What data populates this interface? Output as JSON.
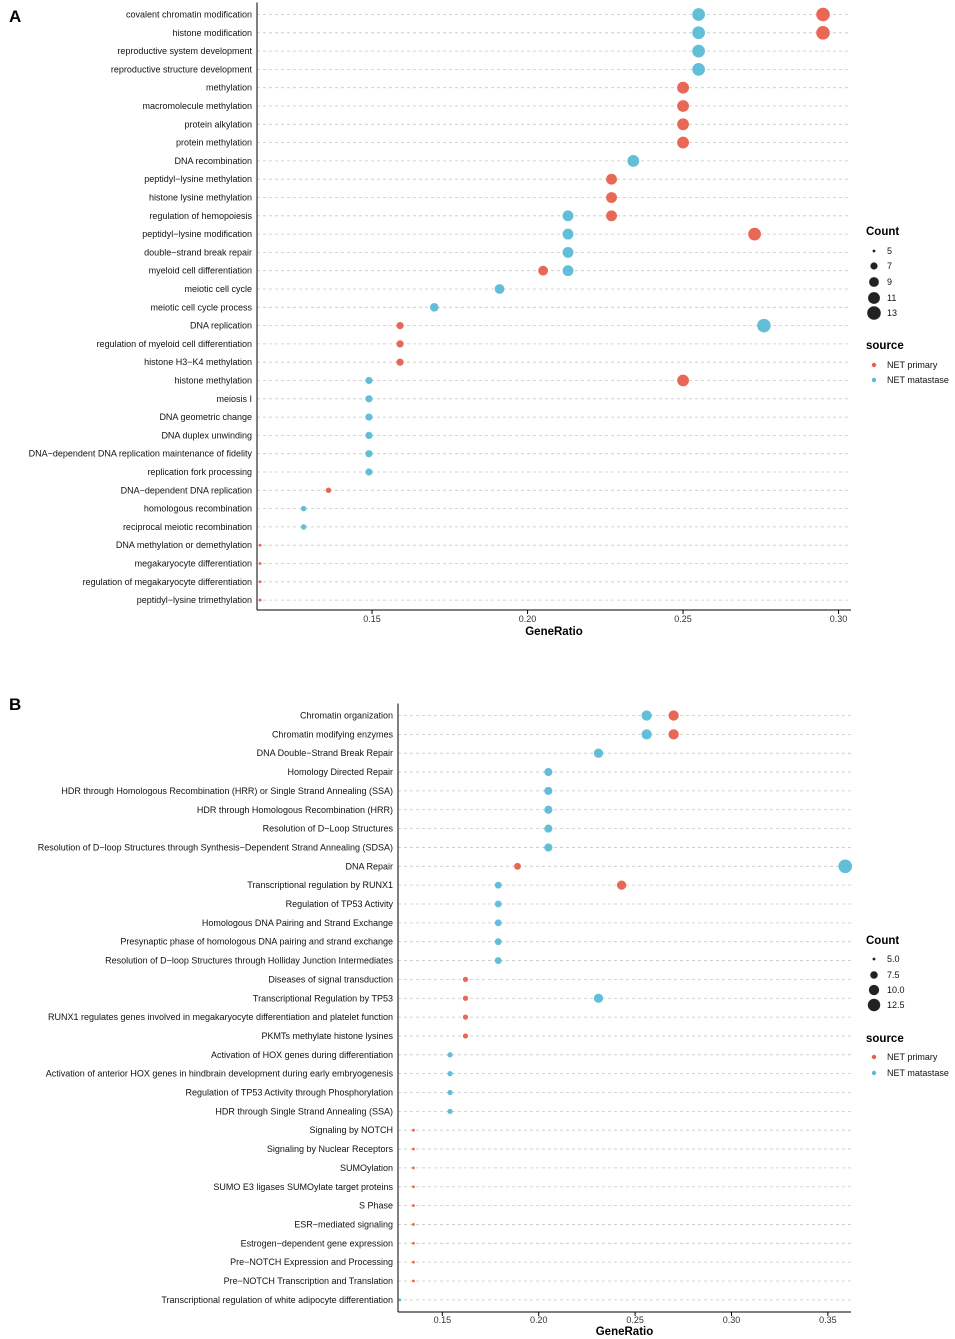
{
  "colors": {
    "NET primary": "#e8604c",
    "NET matastase": "#5bbcd6"
  },
  "chart_data": [
    {
      "panel": "A",
      "type": "scatter",
      "xlabel": "GeneRatio",
      "xlim": [
        0.113,
        0.304
      ],
      "xticks": [
        "0.15",
        "0.20",
        "0.25",
        "0.30"
      ],
      "size_legend": {
        "title": "Count",
        "breaks": [
          "5",
          "7",
          "9",
          "11",
          "13"
        ]
      },
      "color_legend": {
        "title": "source",
        "entries": [
          "NET primary",
          "NET matastase"
        ]
      },
      "terms": [
        "covalent chromatin modification",
        "histone modification",
        "reproductive system development",
        "reproductive structure development",
        "methylation",
        "macromolecule methylation",
        "protein alkylation",
        "protein methylation",
        "DNA recombination",
        "peptidyl−lysine methylation",
        "histone lysine methylation",
        "regulation of hemopoiesis",
        "peptidyl−lysine modification",
        "double−strand break repair",
        "myeloid cell differentiation",
        "meiotic cell cycle",
        "meiotic cell cycle process",
        "DNA replication",
        "regulation of myeloid cell differentiation",
        "histone H3−K4 methylation",
        "histone methylation",
        "meiosis I",
        "DNA geometric change",
        "DNA duplex unwinding",
        "DNA−dependent DNA replication maintenance of fidelity",
        "replication fork processing",
        "DNA−dependent DNA replication",
        "homologous recombination",
        "reciprocal meiotic recombination",
        "DNA methylation or demethylation",
        "megakaryocyte differentiation",
        "regulation of megakaryocyte differentiation",
        "peptidyl−lysine trimethylation"
      ],
      "points": [
        {
          "term": "covalent chromatin modification",
          "x": 0.295,
          "count": 13,
          "source": "NET primary"
        },
        {
          "term": "covalent chromatin modification",
          "x": 0.255,
          "count": 12,
          "source": "NET matastase"
        },
        {
          "term": "histone modification",
          "x": 0.295,
          "count": 13,
          "source": "NET primary"
        },
        {
          "term": "histone modification",
          "x": 0.255,
          "count": 12,
          "source": "NET matastase"
        },
        {
          "term": "reproductive system development",
          "x": 0.255,
          "count": 12,
          "source": "NET matastase"
        },
        {
          "term": "reproductive structure development",
          "x": 0.255,
          "count": 12,
          "source": "NET matastase"
        },
        {
          "term": "methylation",
          "x": 0.25,
          "count": 11,
          "source": "NET primary"
        },
        {
          "term": "macromolecule methylation",
          "x": 0.25,
          "count": 11,
          "source": "NET primary"
        },
        {
          "term": "protein alkylation",
          "x": 0.25,
          "count": 11,
          "source": "NET primary"
        },
        {
          "term": "protein methylation",
          "x": 0.25,
          "count": 11,
          "source": "NET primary"
        },
        {
          "term": "DNA recombination",
          "x": 0.234,
          "count": 11,
          "source": "NET matastase"
        },
        {
          "term": "peptidyl−lysine methylation",
          "x": 0.227,
          "count": 10,
          "source": "NET primary"
        },
        {
          "term": "histone lysine methylation",
          "x": 0.227,
          "count": 10,
          "source": "NET primary"
        },
        {
          "term": "regulation of hemopoiesis",
          "x": 0.227,
          "count": 10,
          "source": "NET primary"
        },
        {
          "term": "regulation of hemopoiesis",
          "x": 0.213,
          "count": 10,
          "source": "NET matastase"
        },
        {
          "term": "peptidyl−lysine modification",
          "x": 0.273,
          "count": 12,
          "source": "NET primary"
        },
        {
          "term": "peptidyl−lysine modification",
          "x": 0.213,
          "count": 10,
          "source": "NET matastase"
        },
        {
          "term": "double−strand break repair",
          "x": 0.213,
          "count": 10,
          "source": "NET matastase"
        },
        {
          "term": "myeloid cell differentiation",
          "x": 0.205,
          "count": 9,
          "source": "NET primary"
        },
        {
          "term": "myeloid cell differentiation",
          "x": 0.213,
          "count": 10,
          "source": "NET matastase"
        },
        {
          "term": "meiotic cell cycle",
          "x": 0.191,
          "count": 9,
          "source": "NET matastase"
        },
        {
          "term": "meiotic cell cycle process",
          "x": 0.17,
          "count": 8,
          "source": "NET matastase"
        },
        {
          "term": "DNA replication",
          "x": 0.159,
          "count": 7,
          "source": "NET primary"
        },
        {
          "term": "DNA replication",
          "x": 0.276,
          "count": 13,
          "source": "NET matastase"
        },
        {
          "term": "regulation of myeloid cell differentiation",
          "x": 0.159,
          "count": 7,
          "source": "NET primary"
        },
        {
          "term": "histone H3−K4 methylation",
          "x": 0.159,
          "count": 7,
          "source": "NET primary"
        },
        {
          "term": "histone methylation",
          "x": 0.25,
          "count": 11,
          "source": "NET primary"
        },
        {
          "term": "histone methylation",
          "x": 0.149,
          "count": 7,
          "source": "NET matastase"
        },
        {
          "term": "meiosis I",
          "x": 0.149,
          "count": 7,
          "source": "NET matastase"
        },
        {
          "term": "DNA geometric change",
          "x": 0.149,
          "count": 7,
          "source": "NET matastase"
        },
        {
          "term": "DNA duplex unwinding",
          "x": 0.149,
          "count": 7,
          "source": "NET matastase"
        },
        {
          "term": "DNA−dependent DNA replication maintenance of fidelity",
          "x": 0.149,
          "count": 7,
          "source": "NET matastase"
        },
        {
          "term": "replication fork processing",
          "x": 0.149,
          "count": 7,
          "source": "NET matastase"
        },
        {
          "term": "DNA−dependent DNA replication",
          "x": 0.136,
          "count": 6,
          "source": "NET primary"
        },
        {
          "term": "homologous recombination",
          "x": 0.128,
          "count": 6,
          "source": "NET matastase"
        },
        {
          "term": "reciprocal meiotic recombination",
          "x": 0.128,
          "count": 6,
          "source": "NET matastase"
        },
        {
          "term": "DNA methylation or demethylation",
          "x": 0.114,
          "count": 5,
          "source": "NET primary"
        },
        {
          "term": "megakaryocyte differentiation",
          "x": 0.114,
          "count": 5,
          "source": "NET primary"
        },
        {
          "term": "regulation of megakaryocyte differentiation",
          "x": 0.114,
          "count": 5,
          "source": "NET primary"
        },
        {
          "term": "peptidyl−lysine trimethylation",
          "x": 0.114,
          "count": 5,
          "source": "NET primary"
        }
      ]
    },
    {
      "panel": "B",
      "type": "scatter",
      "xlabel": "GeneRatio",
      "xlim": [
        0.127,
        0.362
      ],
      "xticks": [
        "0.15",
        "0.20",
        "0.25",
        "0.30",
        "0.35"
      ],
      "size_legend": {
        "title": "Count",
        "breaks": [
          "5.0",
          "7.5",
          "10.0",
          "12.5"
        ]
      },
      "color_legend": {
        "title": "source",
        "entries": [
          "NET primary",
          "NET matastase"
        ]
      },
      "terms": [
        "Chromatin organization",
        "Chromatin modifying enzymes",
        "DNA Double−Strand Break Repair",
        "Homology Directed Repair",
        "HDR through Homologous Recombination (HRR) or Single Strand Annealing (SSA)",
        "HDR through Homologous Recombination (HRR)",
        "Resolution of D−Loop Structures",
        "Resolution of D−loop Structures through Synthesis−Dependent Strand Annealing (SDSA)",
        "DNA Repair",
        "Transcriptional regulation by RUNX1",
        "Regulation of TP53 Activity",
        "Homologous DNA Pairing and Strand Exchange",
        "Presynaptic phase of homologous DNA pairing and strand exchange",
        "Resolution of D−loop Structures through Holliday Junction Intermediates",
        "Diseases of signal transduction",
        "Transcriptional Regulation by TP53",
        "RUNX1 regulates genes involved in megakaryocyte differentiation and platelet function",
        "PKMTs methylate histone lysines",
        "Activation of HOX genes during differentiation",
        "Activation of anterior HOX genes in hindbrain development during early embryogenesis",
        "Regulation of TP53 Activity through Phosphorylation",
        "HDR through Single Strand Annealing (SSA)",
        "Signaling by NOTCH",
        "Signaling by Nuclear Receptors",
        "SUMOylation",
        "SUMO E3 ligases SUMOylate target proteins",
        "S Phase",
        "ESR−mediated signaling",
        "Estrogen−dependent gene expression",
        "Pre−NOTCH Expression and Processing",
        "Pre−NOTCH Transcription and Translation",
        "Transcriptional regulation of white adipocyte differentiation"
      ],
      "points": [
        {
          "term": "Chromatin organization",
          "x": 0.27,
          "count": 10,
          "source": "NET primary"
        },
        {
          "term": "Chromatin organization",
          "x": 0.256,
          "count": 10,
          "source": "NET matastase"
        },
        {
          "term": "Chromatin modifying enzymes",
          "x": 0.27,
          "count": 10,
          "source": "NET primary"
        },
        {
          "term": "Chromatin modifying enzymes",
          "x": 0.256,
          "count": 10,
          "source": "NET matastase"
        },
        {
          "term": "DNA Double−Strand Break Repair",
          "x": 0.231,
          "count": 9,
          "source": "NET matastase"
        },
        {
          "term": "Homology Directed Repair",
          "x": 0.205,
          "count": 8,
          "source": "NET matastase"
        },
        {
          "term": "HDR through Homologous Recombination (HRR) or Single Strand Annealing (SSA)",
          "x": 0.205,
          "count": 8,
          "source": "NET matastase"
        },
        {
          "term": "HDR through Homologous Recombination (HRR)",
          "x": 0.205,
          "count": 8,
          "source": "NET matastase"
        },
        {
          "term": "Resolution of D−Loop Structures",
          "x": 0.205,
          "count": 8,
          "source": "NET matastase"
        },
        {
          "term": "Resolution of D−loop Structures through Synthesis−Dependent Strand Annealing (SDSA)",
          "x": 0.205,
          "count": 8,
          "source": "NET matastase"
        },
        {
          "term": "DNA Repair",
          "x": 0.189,
          "count": 7,
          "source": "NET primary"
        },
        {
          "term": "DNA Repair",
          "x": 0.359,
          "count": 14,
          "source": "NET matastase"
        },
        {
          "term": "Transcriptional regulation by RUNX1",
          "x": 0.243,
          "count": 9,
          "source": "NET primary"
        },
        {
          "term": "Transcriptional regulation by RUNX1",
          "x": 0.179,
          "count": 7,
          "source": "NET matastase"
        },
        {
          "term": "Regulation of TP53 Activity",
          "x": 0.179,
          "count": 7,
          "source": "NET matastase"
        },
        {
          "term": "Homologous DNA Pairing and Strand Exchange",
          "x": 0.179,
          "count": 7,
          "source": "NET matastase"
        },
        {
          "term": "Presynaptic phase of homologous DNA pairing and strand exchange",
          "x": 0.179,
          "count": 7,
          "source": "NET matastase"
        },
        {
          "term": "Resolution of D−loop Structures through Holliday Junction Intermediates",
          "x": 0.179,
          "count": 7,
          "source": "NET matastase"
        },
        {
          "term": "Diseases of signal transduction",
          "x": 0.162,
          "count": 6,
          "source": "NET primary"
        },
        {
          "term": "Transcriptional Regulation by TP53",
          "x": 0.162,
          "count": 6,
          "source": "NET primary"
        },
        {
          "term": "Transcriptional Regulation by TP53",
          "x": 0.231,
          "count": 9,
          "source": "NET matastase"
        },
        {
          "term": "RUNX1 regulates genes involved in megakaryocyte differentiation and platelet function",
          "x": 0.162,
          "count": 6,
          "source": "NET primary"
        },
        {
          "term": "PKMTs methylate histone lysines",
          "x": 0.162,
          "count": 6,
          "source": "NET primary"
        },
        {
          "term": "Activation of HOX genes during differentiation",
          "x": 0.154,
          "count": 6,
          "source": "NET matastase"
        },
        {
          "term": "Activation of anterior HOX genes in hindbrain development during early embryogenesis",
          "x": 0.154,
          "count": 6,
          "source": "NET matastase"
        },
        {
          "term": "Regulation of TP53 Activity through Phosphorylation",
          "x": 0.154,
          "count": 6,
          "source": "NET matastase"
        },
        {
          "term": "HDR through Single Strand Annealing (SSA)",
          "x": 0.154,
          "count": 6,
          "source": "NET matastase"
        },
        {
          "term": "Signaling by NOTCH",
          "x": 0.135,
          "count": 5,
          "source": "NET primary"
        },
        {
          "term": "Signaling by Nuclear Receptors",
          "x": 0.135,
          "count": 5,
          "source": "NET primary"
        },
        {
          "term": "SUMOylation",
          "x": 0.135,
          "count": 5,
          "source": "NET primary"
        },
        {
          "term": "SUMO E3 ligases SUMOylate target proteins",
          "x": 0.135,
          "count": 5,
          "source": "NET primary"
        },
        {
          "term": "S Phase",
          "x": 0.135,
          "count": 5,
          "source": "NET primary"
        },
        {
          "term": "ESR−mediated signaling",
          "x": 0.135,
          "count": 5,
          "source": "NET primary"
        },
        {
          "term": "Estrogen−dependent gene expression",
          "x": 0.135,
          "count": 5,
          "source": "NET primary"
        },
        {
          "term": "Pre−NOTCH Expression and Processing",
          "x": 0.135,
          "count": 5,
          "source": "NET primary"
        },
        {
          "term": "Pre−NOTCH Transcription and Translation",
          "x": 0.135,
          "count": 5,
          "source": "NET primary"
        },
        {
          "term": "Transcriptional regulation of white adipocyte differentiation",
          "x": 0.128,
          "count": 5,
          "source": "NET matastase"
        }
      ]
    }
  ]
}
